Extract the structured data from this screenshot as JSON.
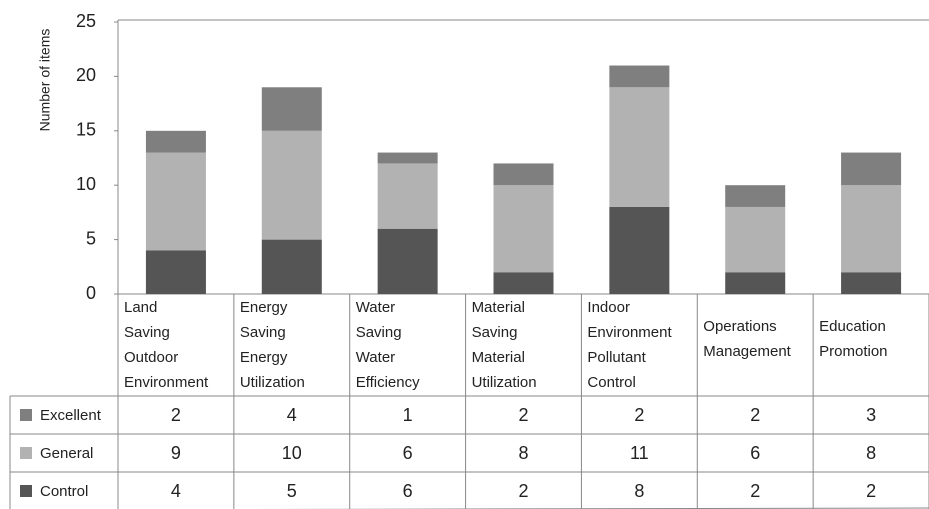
{
  "chart_data": {
    "type": "stacked_bar_table",
    "y_label": "Number of items",
    "categories": [
      [
        "Land",
        "Saving",
        "Outdoor",
        "Environment"
      ],
      [
        "Energy",
        "Saving",
        "Energy",
        "Utilization"
      ],
      [
        "Water",
        "Saving",
        "Water",
        "Efficiency"
      ],
      [
        "Material",
        "Saving",
        "Material",
        "Utilization"
      ],
      [
        "Indoor",
        "Environment",
        "Pollutant",
        "Control"
      ],
      [
        "Operations",
        "Management"
      ],
      [
        "Education",
        "Promotion"
      ]
    ],
    "series": [
      {
        "name": "Excellent",
        "color": "#7f7f7f",
        "values": [
          2,
          4,
          1,
          2,
          2,
          2,
          3
        ]
      },
      {
        "name": "General",
        "color": "#b2b2b2",
        "values": [
          9,
          10,
          6,
          8,
          11,
          6,
          8
        ]
      },
      {
        "name": "Control",
        "color": "#555555",
        "values": [
          4,
          5,
          6,
          2,
          8,
          2,
          2
        ]
      }
    ],
    "ylim": [
      0,
      25
    ],
    "yticks": [
      0,
      5,
      10,
      15,
      20,
      25
    ],
    "grid": false
  }
}
